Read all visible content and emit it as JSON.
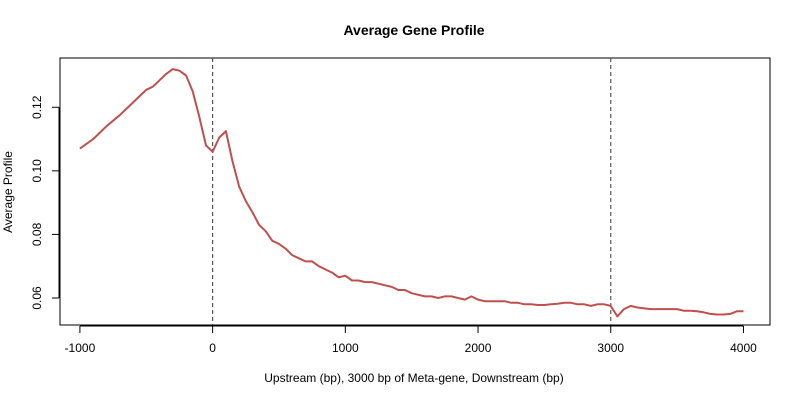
{
  "chart_data": {
    "type": "line",
    "title": "Average Gene Profile",
    "xlabel": "Upstream (bp), 3000 bp of Meta-gene, Downstream (bp)",
    "ylabel": "Average Profile",
    "xlim": [
      -1150,
      4200
    ],
    "ylim": [
      0.0515,
      0.1355
    ],
    "x_ticks": [
      -1000,
      0,
      1000,
      2000,
      3000,
      4000
    ],
    "x_tick_labels": [
      "-1000",
      "0",
      "1000",
      "2000",
      "3000",
      "4000"
    ],
    "y_ticks": [
      0.06,
      0.08,
      0.1,
      0.12
    ],
    "y_tick_labels": [
      "0.06",
      "0.08",
      "0.10",
      "0.12"
    ],
    "vlines": [
      0,
      3000
    ],
    "grid": false,
    "colors": {
      "line": "#c0504d",
      "vline": "#555555",
      "axis": "#000000"
    },
    "series": [
      {
        "x": [
          -1000,
          -900,
          -800,
          -700,
          -600,
          -550,
          -500,
          -450,
          -400,
          -350,
          -300,
          -250,
          -200,
          -150,
          -100,
          -50,
          0,
          50,
          100,
          150,
          200,
          250,
          300,
          350,
          400,
          450,
          500,
          550,
          600,
          650,
          700,
          750,
          800,
          850,
          900,
          950,
          1000,
          1050,
          1100,
          1150,
          1200,
          1250,
          1300,
          1350,
          1400,
          1450,
          1500,
          1550,
          1600,
          1650,
          1700,
          1750,
          1800,
          1850,
          1900,
          1950,
          2000,
          2050,
          2100,
          2150,
          2200,
          2250,
          2300,
          2350,
          2400,
          2450,
          2500,
          2550,
          2600,
          2650,
          2700,
          2750,
          2800,
          2850,
          2900,
          2950,
          3000,
          3050,
          3100,
          3150,
          3200,
          3300,
          3400,
          3450,
          3500,
          3550,
          3600,
          3650,
          3700,
          3750,
          3800,
          3850,
          3900,
          3950,
          4000
        ],
        "y": [
          0.107,
          0.11,
          0.114,
          0.1175,
          0.1215,
          0.1235,
          0.1255,
          0.1265,
          0.1285,
          0.1305,
          0.132,
          0.1315,
          0.13,
          0.125,
          0.117,
          0.108,
          0.106,
          0.1105,
          0.1125,
          0.103,
          0.095,
          0.0905,
          0.087,
          0.083,
          0.081,
          0.078,
          0.077,
          0.0755,
          0.0735,
          0.0725,
          0.0715,
          0.0715,
          0.07,
          0.069,
          0.068,
          0.0665,
          0.067,
          0.0655,
          0.0655,
          0.065,
          0.065,
          0.0645,
          0.064,
          0.0635,
          0.0625,
          0.0625,
          0.0615,
          0.061,
          0.0605,
          0.0605,
          0.06,
          0.0605,
          0.0605,
          0.06,
          0.0595,
          0.0605,
          0.0595,
          0.059,
          0.059,
          0.059,
          0.059,
          0.0585,
          0.0585,
          0.058,
          0.058,
          0.0578,
          0.0578,
          0.058,
          0.0582,
          0.0585,
          0.0585,
          0.058,
          0.058,
          0.0575,
          0.058,
          0.058,
          0.0575,
          0.0542,
          0.0565,
          0.0575,
          0.057,
          0.0565,
          0.0565,
          0.0565,
          0.0565,
          0.056,
          0.056,
          0.0558,
          0.0555,
          0.055,
          0.0548,
          0.0548,
          0.055,
          0.0558,
          0.0558
        ]
      }
    ]
  }
}
